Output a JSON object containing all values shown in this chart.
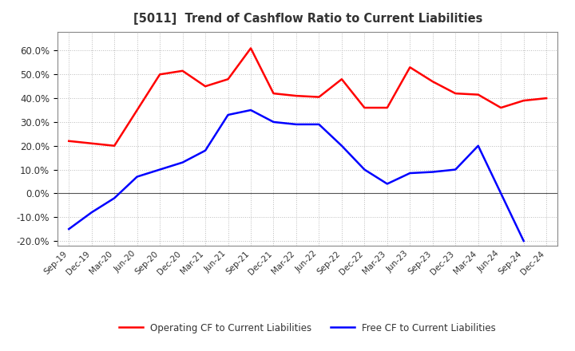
{
  "title": "[5011]  Trend of Cashflow Ratio to Current Liabilities",
  "x_labels": [
    "Sep-19",
    "Dec-19",
    "Mar-20",
    "Jun-20",
    "Sep-20",
    "Dec-20",
    "Mar-21",
    "Jun-21",
    "Sep-21",
    "Dec-21",
    "Mar-22",
    "Jun-22",
    "Sep-22",
    "Dec-22",
    "Mar-23",
    "Jun-23",
    "Sep-23",
    "Dec-23",
    "Mar-24",
    "Jun-24",
    "Sep-24",
    "Dec-24"
  ],
  "operating_cf": [
    22.0,
    21.0,
    20.0,
    50.0,
    51.5,
    45.0,
    48.0,
    61.0,
    42.0,
    41.0,
    40.5,
    48.0,
    36.0,
    36.0,
    53.0,
    47.0,
    42.0,
    41.5,
    36.0,
    39.0,
    40.0
  ],
  "operating_cf_indices": [
    0,
    1,
    2,
    4,
    5,
    6,
    7,
    8,
    9,
    10,
    11,
    12,
    13,
    14,
    15,
    16,
    17,
    18,
    19,
    20,
    21
  ],
  "free_cf": [
    -15.0,
    -8.0,
    -2.0,
    7.0,
    10.0,
    13.0,
    18.0,
    33.0,
    35.0,
    30.0,
    29.0,
    29.0,
    20.0,
    10.0,
    4.0,
    8.5,
    9.0,
    10.0,
    20.0,
    -20.0
  ],
  "free_cf_indices": [
    0,
    1,
    2,
    3,
    4,
    5,
    6,
    7,
    8,
    9,
    10,
    11,
    12,
    13,
    14,
    15,
    16,
    17,
    18,
    20
  ],
  "operating_color": "#FF0000",
  "free_color": "#0000FF",
  "ylim": [
    -22.0,
    68.0
  ],
  "yticks": [
    -20.0,
    -10.0,
    0.0,
    10.0,
    20.0,
    30.0,
    40.0,
    50.0,
    60.0
  ],
  "legend_operating": "Operating CF to Current Liabilities",
  "legend_free": "Free CF to Current Liabilities",
  "background_color": "#ffffff",
  "grid_color": "#bbbbbb",
  "title_color": "#333333"
}
